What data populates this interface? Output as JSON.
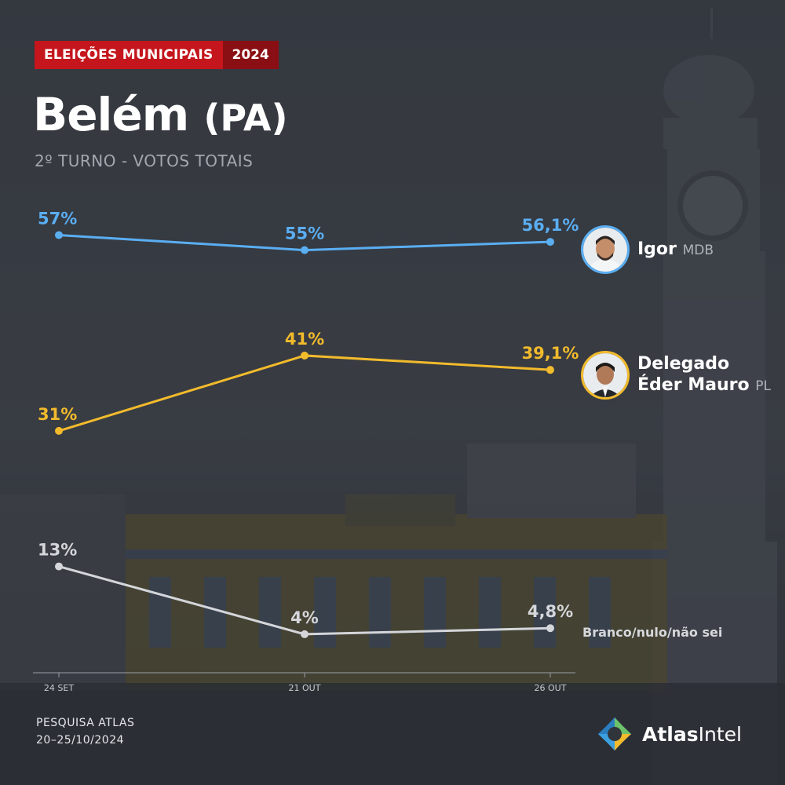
{
  "header": {
    "badge": "ELEIÇÕES MUNICIPAIS",
    "year": "2024",
    "city": "Belém",
    "state": "(PA)",
    "subtitle": "2º TURNO - VOTOS TOTAIS"
  },
  "colors": {
    "igor": "#5aaef2",
    "eder": "#f2bb2c",
    "other": "#d4d6da",
    "badge": "#c4161c"
  },
  "candidates": {
    "igor": {
      "name": "Igor",
      "party": "MDB",
      "avatar": "candidate-photo"
    },
    "eder": {
      "name_line1": "Delegado",
      "name_line2": "Éder Mauro",
      "party": "PL",
      "avatar": "candidate-photo"
    },
    "other": {
      "label": "Branco/nulo/não sei"
    }
  },
  "chart_data": {
    "type": "line",
    "x": [
      "24 SET",
      "21 OUT",
      "26 OUT"
    ],
    "ylim": [
      0,
      60
    ],
    "grid": false,
    "series": [
      {
        "name": "Igor",
        "values": [
          57,
          55,
          56.1
        ],
        "labels": [
          "57%",
          "55%",
          "56,1%"
        ]
      },
      {
        "name": "Delegado Éder Mauro",
        "values": [
          31,
          41,
          39.1
        ],
        "labels": [
          "31%",
          "41%",
          "39,1%"
        ]
      },
      {
        "name": "Branco/nulo/não sei",
        "values": [
          13,
          4,
          4.8
        ],
        "labels": [
          "13%",
          "4%",
          "4,8%"
        ]
      }
    ]
  },
  "footer": {
    "source": "PESQUISA ATLAS",
    "dates": "20–25/10/2024"
  },
  "logo": {
    "bold": "Atlas",
    "regular": "Intel"
  }
}
